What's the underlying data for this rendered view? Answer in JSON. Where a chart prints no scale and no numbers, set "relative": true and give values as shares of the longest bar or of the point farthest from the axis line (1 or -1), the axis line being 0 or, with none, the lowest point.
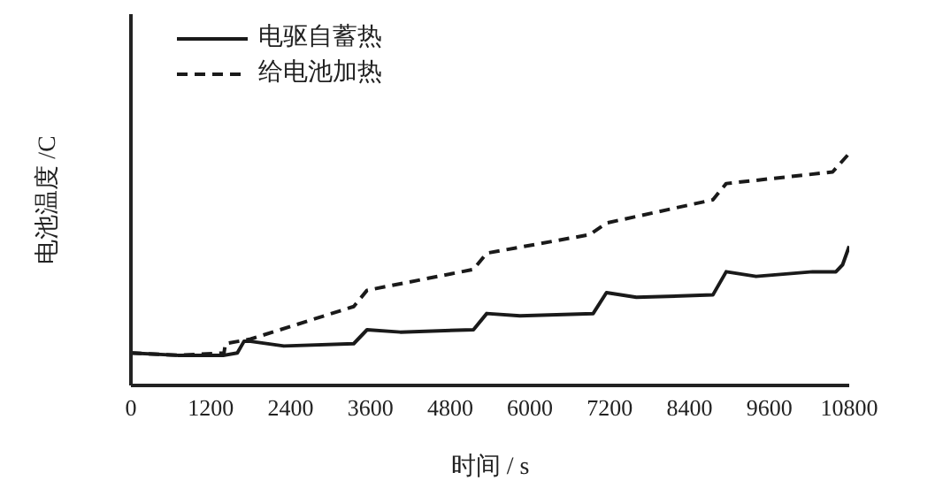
{
  "chart_data": {
    "type": "line",
    "relative": true,
    "xlabel": "时间 / s",
    "ylabel": "电池温度 /C",
    "xlim": [
      0,
      10800
    ],
    "xticks": [
      0,
      1200,
      2400,
      3600,
      4800,
      6000,
      7200,
      8400,
      9600,
      10800
    ],
    "legend": "top left",
    "marker": "none",
    "grid": false,
    "series": [
      {
        "name": "电驱自蓄热",
        "color": "#1a1a1a",
        "line_style": "solid",
        "x": [
          0,
          700,
          1400,
          1600,
          1700,
          1800,
          2300,
          3350,
          3550,
          4050,
          5150,
          5350,
          5850,
          6950,
          7150,
          7600,
          8750,
          8950,
          9400,
          10250,
          10600,
          10700,
          10800
        ],
        "values": [
          0.14,
          0.13,
          0.13,
          0.14,
          0.19,
          0.19,
          0.17,
          0.18,
          0.24,
          0.23,
          0.24,
          0.31,
          0.3,
          0.31,
          0.4,
          0.38,
          0.39,
          0.49,
          0.47,
          0.49,
          0.49,
          0.52,
          0.6
        ]
      },
      {
        "name": "给电池加热",
        "color": "#1a1a1a",
        "line_style": "dashed",
        "x": [
          0,
          700,
          1400,
          1420,
          1800,
          3350,
          3550,
          5150,
          5350,
          6900,
          7150,
          8750,
          8950,
          10550,
          10800
        ],
        "values": [
          0.14,
          0.13,
          0.14,
          0.18,
          0.2,
          0.34,
          0.41,
          0.5,
          0.57,
          0.65,
          0.7,
          0.8,
          0.87,
          0.92,
          1
        ]
      }
    ]
  }
}
